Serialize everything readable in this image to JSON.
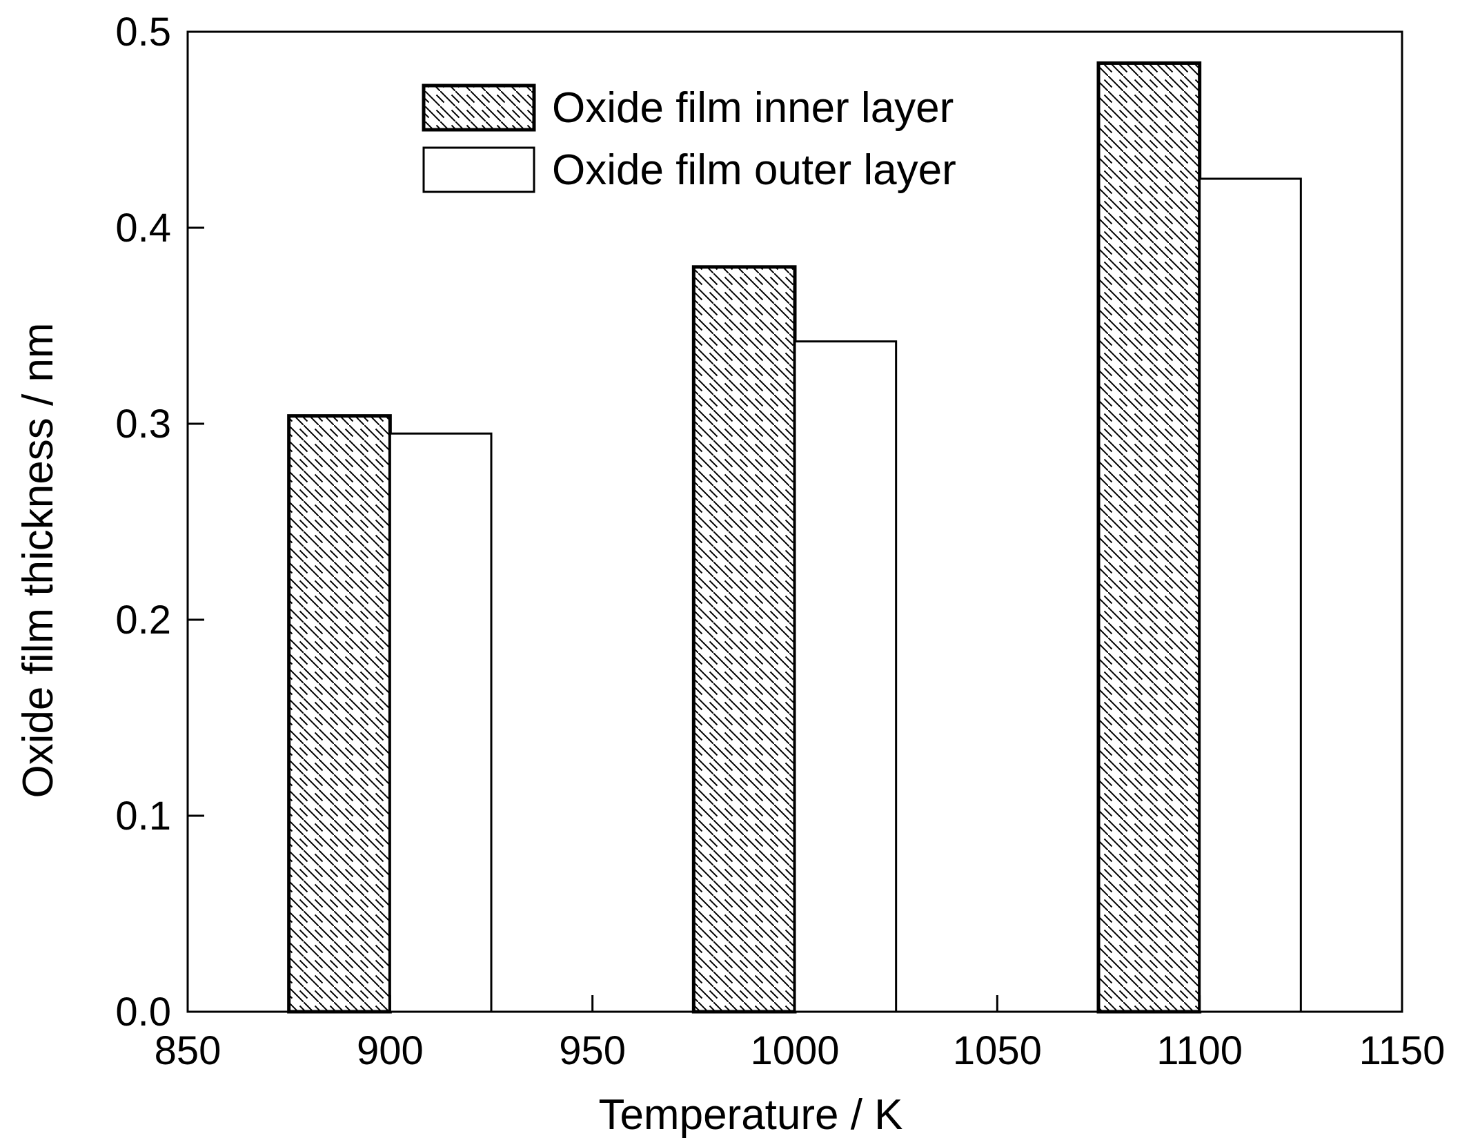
{
  "chart_data": {
    "type": "bar",
    "xlabel": "Temperature / K",
    "ylabel": "Oxide film thickness / nm",
    "xlim": [
      850,
      1150
    ],
    "ylim": [
      0.0,
      0.5
    ],
    "x_ticks": [
      850,
      900,
      950,
      1000,
      1050,
      1100,
      1150
    ],
    "y_ticks": [
      0.0,
      0.1,
      0.2,
      0.3,
      0.4,
      0.5
    ],
    "y_tick_labels": [
      "0.0",
      "0.1",
      "0.2",
      "0.3",
      "0.4",
      "0.5"
    ],
    "bar_width": 25,
    "legend_position": "top-center",
    "grid": false,
    "series": [
      {
        "name": "Oxide film inner layer",
        "fill": "hatched",
        "x_start": [
          875,
          975,
          1075
        ],
        "values": [
          0.304,
          0.38,
          0.484
        ]
      },
      {
        "name": "Oxide film outer layer",
        "fill": "white",
        "x_start": [
          900,
          1000,
          1100
        ],
        "values": [
          0.295,
          0.342,
          0.425
        ]
      }
    ]
  }
}
